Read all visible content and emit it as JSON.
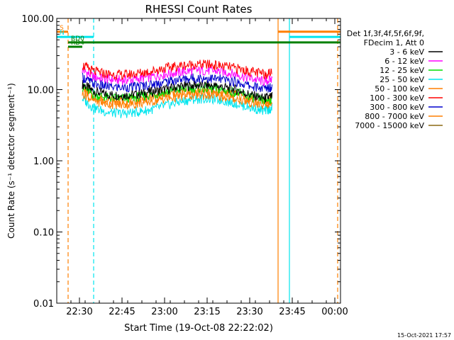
{
  "chart_data": {
    "type": "line",
    "title": "RHESSI Count Rates",
    "xlabel": "Start Time (19-Oct-08 22:22:02)",
    "ylabel": "Count Rate (s⁻¹ detector segment⁻¹)",
    "y_scale": "log",
    "ylim": [
      0.01,
      100
    ],
    "xlim": [
      "22:22",
      "00:02"
    ],
    "x_ticks": [
      "22:30",
      "22:45",
      "23:00",
      "23:15",
      "23:30",
      "23:45",
      "00:00"
    ],
    "y_ticks": [
      "0.01",
      "0.10",
      "1.00",
      "10.00",
      "100.00"
    ],
    "grid": false,
    "legend_header": [
      "Det 1f,3f,4f,5f,6f,9f,",
      "FDecim 1, Att 0"
    ],
    "legend_position": "right",
    "x": [
      "22:31",
      "22:35",
      "22:40",
      "22:45",
      "22:50",
      "22:55",
      "23:00",
      "23:05",
      "23:10",
      "23:15",
      "23:20",
      "23:25",
      "23:30",
      "23:35",
      "23:38"
    ],
    "series": [
      {
        "name": "3 - 6 keV",
        "color": "#000000",
        "values": [
          12,
          9.5,
          8.5,
          8.3,
          8.6,
          9.3,
          10,
          11,
          11.5,
          11.5,
          11,
          10,
          8.5,
          7.5,
          8
        ]
      },
      {
        "name": "6 - 12 keV",
        "color": "#ff00ff",
        "values": [
          19,
          15,
          14,
          13.5,
          14,
          15,
          16.5,
          17.5,
          18.5,
          18.5,
          18,
          16.5,
          14.5,
          13,
          14
        ]
      },
      {
        "name": "12 - 25 keV",
        "color": "#00dd00",
        "values": [
          11,
          8.5,
          7.7,
          7.5,
          7.8,
          8.4,
          9.2,
          10,
          10.5,
          10.5,
          10,
          9.2,
          8,
          7,
          7.5
        ]
      },
      {
        "name": "25 - 50 keV",
        "color": "#00e5ee",
        "values": [
          7.5,
          5.5,
          4.8,
          4.6,
          4.8,
          5.2,
          5.9,
          6.7,
          7.3,
          7.5,
          7.1,
          6.4,
          5.6,
          5,
          5.5
        ]
      },
      {
        "name": "50 - 100 keV",
        "color": "#ff7f00",
        "values": [
          9,
          7,
          6.3,
          6.1,
          6.3,
          6.8,
          7.4,
          8,
          8.4,
          8.4,
          8,
          7.4,
          6.6,
          6,
          6.5
        ]
      },
      {
        "name": "100 - 300 keV",
        "color": "#ff0000",
        "values": [
          22,
          18,
          16.5,
          16,
          16.8,
          18,
          20,
          21.5,
          22.5,
          22.5,
          21.5,
          20,
          18,
          16.5,
          17.5
        ]
      },
      {
        "name": "300 - 800 keV",
        "color": "#0000cd",
        "values": [
          15,
          12,
          11,
          10.7,
          11,
          11.8,
          12.8,
          13.8,
          14.5,
          14.5,
          13.9,
          12.8,
          11.3,
          10.3,
          11
        ]
      },
      {
        "name": "800 - 7000 keV",
        "color": "#ff7f00",
        "values": [
          10,
          8,
          7.2,
          7,
          7.2,
          7.7,
          8.4,
          9.1,
          9.6,
          9.6,
          9.1,
          8.4,
          7.5,
          6.8,
          7.3
        ]
      },
      {
        "name": "7000 - 15000 keV",
        "color": "#8b6914",
        "values": [
          null,
          null,
          null,
          null,
          null,
          null,
          null,
          null,
          null,
          null,
          null,
          null,
          null,
          null,
          null
        ]
      }
    ],
    "flags": [
      {
        "label": "S",
        "color": "#ff7f00",
        "segments": [
          [
            "22:22",
            "22:26"
          ],
          [
            "23:40",
            "00:02"
          ]
        ],
        "value": 65
      },
      {
        "label": "N",
        "color": "#00e5ee",
        "segments": [
          [
            "22:22",
            "22:35"
          ],
          [
            "23:44",
            "00:02"
          ]
        ],
        "value": 55
      },
      {
        "label": "RD0",
        "color": "#008000",
        "segments": [
          [
            "22:26",
            "00:02"
          ]
        ],
        "value": 46
      },
      {
        "label": "RD4",
        "color": "#008000",
        "segments": [
          [
            "22:26",
            "22:31"
          ]
        ],
        "value": 40
      }
    ],
    "vertical_markers": [
      {
        "time": "22:26",
        "color": "#ff7f00",
        "style": "dashed"
      },
      {
        "time": "22:35",
        "color": "#00e5ee",
        "style": "dashed"
      },
      {
        "time": "23:40",
        "color": "#ff7f00",
        "style": "solid"
      },
      {
        "time": "23:44",
        "color": "#00e5ee",
        "style": "solid"
      },
      {
        "time": "00:01",
        "color": "#ff7f00",
        "style": "dashed"
      }
    ]
  },
  "footer_timestamp": "15-Oct-2021 17:57"
}
